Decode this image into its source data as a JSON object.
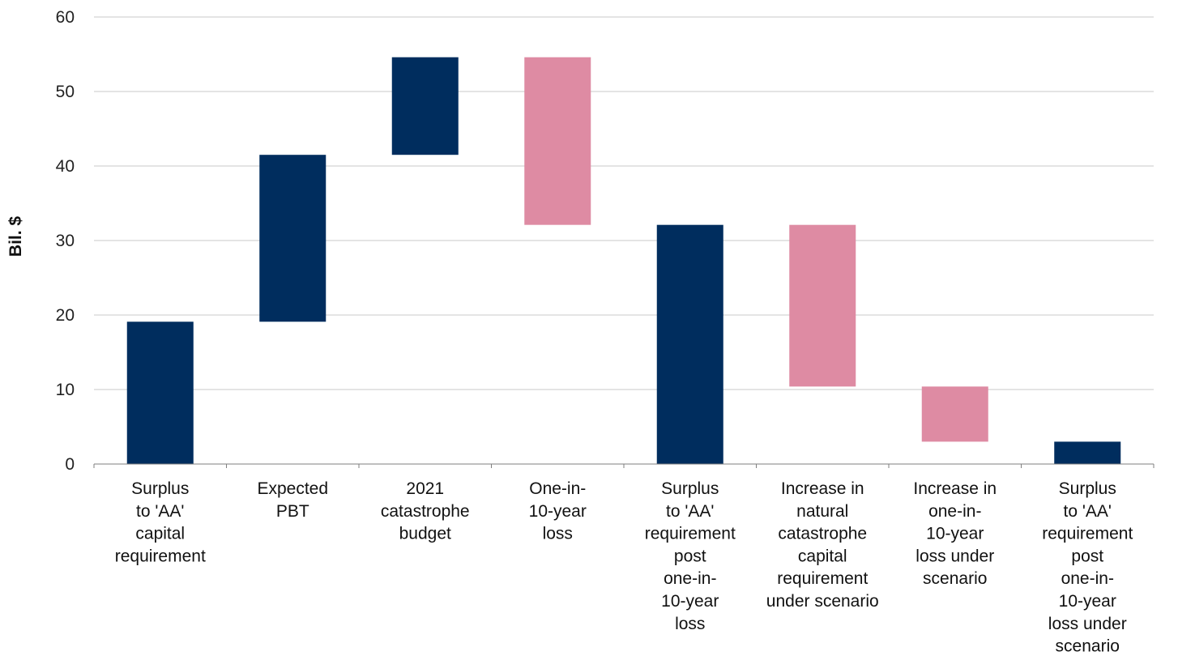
{
  "chart_data": {
    "type": "bar",
    "subtype": "waterfall",
    "ylabel": "Bil. $",
    "xlabel": "",
    "ylim": [
      0,
      60
    ],
    "yticks": [
      0,
      10,
      20,
      30,
      40,
      50,
      60
    ],
    "grid": true,
    "legend": "none",
    "colors": {
      "total": "#002d5e",
      "increase": "#002d5e",
      "decrease": "#de8ba3"
    },
    "categories": [
      [
        "Surplus",
        "to 'AA'",
        "capital",
        "requirement"
      ],
      [
        "Expected",
        "PBT"
      ],
      [
        "2021",
        "catastrophe",
        "budget"
      ],
      [
        "One-in-",
        "10-year",
        "loss"
      ],
      [
        "Surplus",
        "to 'AA'",
        "requirement",
        "post",
        "one-in-",
        "10-year",
        "loss"
      ],
      [
        "Increase in",
        "natural",
        "catastrophe",
        "capital",
        "requirement",
        "under scenario"
      ],
      [
        "Increase in",
        "one-in-",
        "10-year",
        "loss under",
        "scenario"
      ],
      [
        "Surplus",
        "to 'AA'",
        "requirement",
        "post",
        "one-in-",
        "10-year",
        "loss under",
        "scenario"
      ]
    ],
    "bars": [
      {
        "start": 0,
        "end": 19.1,
        "kind": "total"
      },
      {
        "start": 19.1,
        "end": 41.5,
        "kind": "increase"
      },
      {
        "start": 41.5,
        "end": 54.6,
        "kind": "increase"
      },
      {
        "start": 54.6,
        "end": 32.1,
        "kind": "decrease"
      },
      {
        "start": 0,
        "end": 32.1,
        "kind": "total"
      },
      {
        "start": 32.1,
        "end": 10.4,
        "kind": "decrease"
      },
      {
        "start": 10.4,
        "end": 3.0,
        "kind": "decrease"
      },
      {
        "start": 0,
        "end": 3.0,
        "kind": "total"
      }
    ]
  }
}
